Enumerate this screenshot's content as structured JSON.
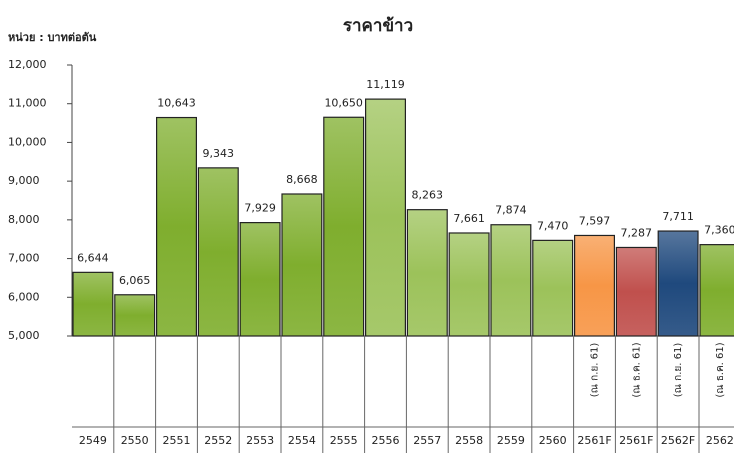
{
  "chart_data": {
    "type": "bar",
    "title": "ราคาข้าว",
    "y_label": "หน่วย : บาทต่อตัน",
    "categories": [
      "2549",
      "2550",
      "2551",
      "2552",
      "2553",
      "2554",
      "2555",
      "2556",
      "2557",
      "2558",
      "2559",
      "2560",
      "2561F",
      "2561F",
      "2562F",
      "2562"
    ],
    "notes": [
      null,
      null,
      null,
      null,
      null,
      null,
      null,
      null,
      null,
      null,
      null,
      null,
      "(ณ ก.ย. 61)",
      "(ณ ธ.ค. 61)",
      "(ณ ก.ย. 61)",
      "(ณ ธ.ค. 61)"
    ],
    "values": [
      6644,
      6065,
      10643,
      9343,
      7929,
      8668,
      10650,
      11119,
      8263,
      7661,
      7874,
      7470,
      7597,
      7287,
      7711,
      7360
    ],
    "value_labels": [
      "6,644",
      "6,065",
      "10,643",
      "9,343",
      "7,929",
      "8,668",
      "10,650",
      "11,119",
      "8,263",
      "7,661",
      "7,874",
      "7,470",
      "7,597",
      "7,287",
      "7,711",
      "7,360"
    ],
    "colors": [
      "#7fae2e",
      "#7fae2e",
      "#7fae2e",
      "#7fae2e",
      "#7fae2e",
      "#7fae2e",
      "#7fae2e",
      "#9cc25a",
      "#9cc25a",
      "#9cc25a",
      "#9cc25a",
      "#9cc25a",
      "#f79646",
      "#c0504d",
      "#1f497d",
      "#7fae2e"
    ],
    "ylim": [
      5000,
      12000
    ],
    "yticks": [
      {
        "value": 5000,
        "label": "5,000"
      },
      {
        "value": 6000,
        "label": "6,000"
      },
      {
        "value": 7000,
        "label": "7,000"
      },
      {
        "value": 8000,
        "label": "8,000"
      },
      {
        "value": 9000,
        "label": "9,000"
      },
      {
        "value": 10000,
        "label": "10,000"
      },
      {
        "value": 11000,
        "label": "11,000"
      },
      {
        "value": 12000,
        "label": "12,000"
      }
    ]
  }
}
